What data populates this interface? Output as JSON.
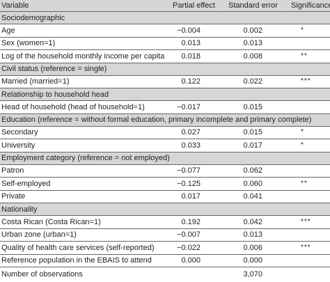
{
  "header": {
    "variable": "Variable",
    "partial_effect": "Partial effect",
    "standard_error": "Standard error",
    "significance": "Significance"
  },
  "sections": [
    {
      "title": "Sociodemographic",
      "rows": [
        {
          "label": "Age",
          "effect": "−0.004",
          "se": "0.002",
          "sig": "*"
        },
        {
          "label": "Sex (women=1)",
          "effect": "0.013",
          "se": "0.013",
          "sig": ""
        },
        {
          "label": "Log of the household monthly income per capita",
          "effect": "0.018",
          "se": "0.008",
          "sig": "**"
        }
      ]
    },
    {
      "title": "Civil status (reference = single)",
      "rows": [
        {
          "label": "Married (married=1)",
          "effect": "0.122",
          "se": "0.022",
          "sig": "***"
        }
      ]
    },
    {
      "title": "Relationship to household head",
      "rows": [
        {
          "label": "Head of household (head of household=1)",
          "effect": "−0.017",
          "se": "0.015",
          "sig": ""
        }
      ]
    },
    {
      "title": "Education (reference = without formal education, primary incomplete and primary complete)",
      "rows": [
        {
          "label": "Secondary",
          "effect": "0.027",
          "se": "0.015",
          "sig": "*"
        },
        {
          "label": "University",
          "effect": "0.033",
          "se": "0.017",
          "sig": "*"
        }
      ]
    },
    {
      "title": "Employment category (reference = not employed)",
      "rows": [
        {
          "label": "Patron",
          "effect": "−0.077",
          "se": "0.062",
          "sig": ""
        },
        {
          "label": "Self-employed",
          "effect": "−0.125",
          "se": "0.060",
          "sig": "**"
        },
        {
          "label": "Private",
          "effect": "0.017",
          "se": "0.041",
          "sig": ""
        }
      ]
    },
    {
      "title": "Nationality",
      "rows": [
        {
          "label": "Costa Rican (Costa Rican=1)",
          "effect": "0.192",
          "se": "0.042",
          "sig": "***"
        },
        {
          "label": "Urban zone (urban=1)",
          "effect": "−0.007",
          "se": "0.013",
          "sig": ""
        },
        {
          "label": "Quality of health care services (self-reported)",
          "effect": "−0.022",
          "se": "0.006",
          "sig": "***"
        },
        {
          "label": "Reference population in the EBAIS to attend",
          "effect": "0.000",
          "se": "0.000",
          "sig": ""
        }
      ]
    }
  ],
  "footer": {
    "label": "Number of observations",
    "value": "3,070"
  }
}
